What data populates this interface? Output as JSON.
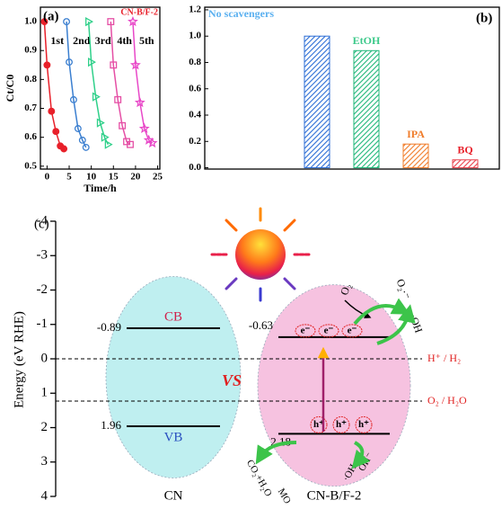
{
  "chart_data": [
    {
      "type": "line",
      "panel_label": "(a)",
      "annotation": "CN-B/F-2",
      "x_label": "Time/h",
      "y_label": "Ct/C0",
      "xlim": [
        -1.5,
        25.5
      ],
      "xticks": [
        0,
        5,
        10,
        15,
        20,
        25
      ],
      "ylim": [
        0.49,
        1.05
      ],
      "yticks": [
        0.5,
        0.6,
        0.7,
        0.8,
        0.9,
        {
          "value": 1,
          "label": "1.0"
        }
      ],
      "series": [
        {
          "name": "1st",
          "color": "#e8202a",
          "marker": "circle-filled",
          "x": [
            -0.6,
            0,
            1,
            2,
            3,
            3.8
          ],
          "values": [
            1.0,
            0.85,
            0.69,
            0.62,
            0.57,
            0.56
          ]
        },
        {
          "name": "2nd",
          "color": "#3b7fd0",
          "marker": "circle",
          "x": [
            4.4,
            5,
            6,
            7,
            8,
            8.8
          ],
          "values": [
            1.0,
            0.86,
            0.73,
            0.63,
            0.59,
            0.565
          ]
        },
        {
          "name": "3rd",
          "color": "#2fd08a",
          "marker": "triangle",
          "x": [
            9.4,
            10,
            11,
            12,
            13,
            13.8
          ],
          "values": [
            1.0,
            0.86,
            0.74,
            0.65,
            0.6,
            0.575
          ]
        },
        {
          "name": "4th",
          "color": "#e54fa5",
          "marker": "square",
          "x": [
            14.4,
            15,
            16,
            17,
            18,
            18.8
          ],
          "values": [
            1.0,
            0.85,
            0.73,
            0.64,
            0.585,
            0.575
          ]
        },
        {
          "name": "5th",
          "color": "#e848c8",
          "marker": "star",
          "x": [
            19.4,
            20,
            21,
            22,
            23,
            23.8
          ],
          "values": [
            1.0,
            0.85,
            0.72,
            0.63,
            0.59,
            0.58
          ]
        }
      ]
    },
    {
      "type": "bar",
      "panel_label": "(b)",
      "categories": [
        "No scavengers",
        "EtOH",
        "IPA",
        "BQ"
      ],
      "values": [
        1.0,
        0.89,
        0.18,
        0.06
      ],
      "colors": [
        "#2d6ed6",
        "#21b77a",
        "#f07c2a",
        "#e8404a"
      ],
      "label_colors": [
        "#5ab0f0",
        "#3cc98a",
        "#f07c2a",
        "#e8202a"
      ],
      "ylim": [
        -0.01,
        1.22
      ],
      "yticks": [
        {
          "value": 0,
          "label": "0.0"
        },
        0.2,
        0.4,
        0.6,
        0.8,
        {
          "value": 1,
          "label": "1.0"
        },
        1.2
      ]
    },
    {
      "type": "band",
      "panel_label": "(c)",
      "y_label": "Energy (eV RHE)",
      "ylim": [
        -4,
        4
      ],
      "yticks": [
        -4,
        -3,
        -2,
        -1,
        0,
        1,
        2,
        3,
        4
      ],
      "bands": [
        {
          "name": "CN",
          "cb": -0.89,
          "vb": 1.96,
          "color": "#bfeff0",
          "cb_label": "CB",
          "vb_label": "VB"
        },
        {
          "name": "CN-B/F-2",
          "cb": -0.63,
          "vb": 2.18,
          "color": "#f6c2e0"
        }
      ],
      "references": [
        {
          "name": "H⁺ / H₂",
          "value": 0
        },
        {
          "name": "O₂ / H₂O",
          "value": 1.23
        }
      ],
      "carriers": {
        "electron": "e⁻",
        "hole": "h⁺"
      },
      "annotations": [
        "VS",
        "O₂",
        "O₂·⁻",
        "H⁺",
        "·OH",
        "CO₂+H₂O",
        "MO",
        "·OH",
        "OH⁻"
      ]
    }
  ]
}
